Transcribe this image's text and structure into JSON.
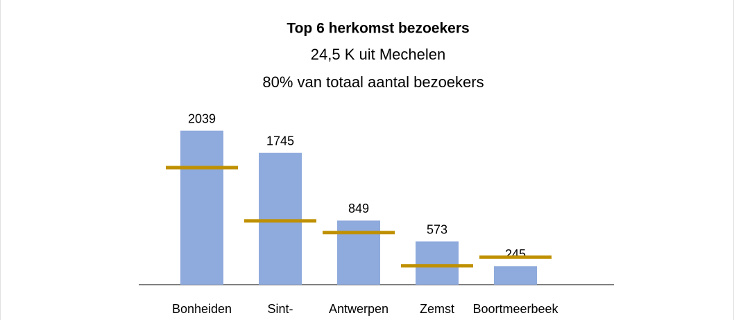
{
  "chart_data": {
    "type": "bar",
    "title": "Top 6 herkomst bezoekers",
    "subtitle": [
      "24,5 K uit Mechelen",
      "80% van totaal aantal bezoekers"
    ],
    "categories": [
      "Bonheiden",
      "Sint-",
      "Antwerpen",
      "Zemst",
      "Boortmeerbeek"
    ],
    "series": [
      {
        "type": "bar",
        "color": "#8faadc",
        "values": [
          2039,
          1745,
          849,
          573,
          245
        ]
      },
      {
        "type": "marker",
        "color": "#bf9000",
        "values": [
          1550,
          845,
          690,
          250,
          365
        ]
      }
    ],
    "ylim": [
      0,
      2100
    ]
  }
}
